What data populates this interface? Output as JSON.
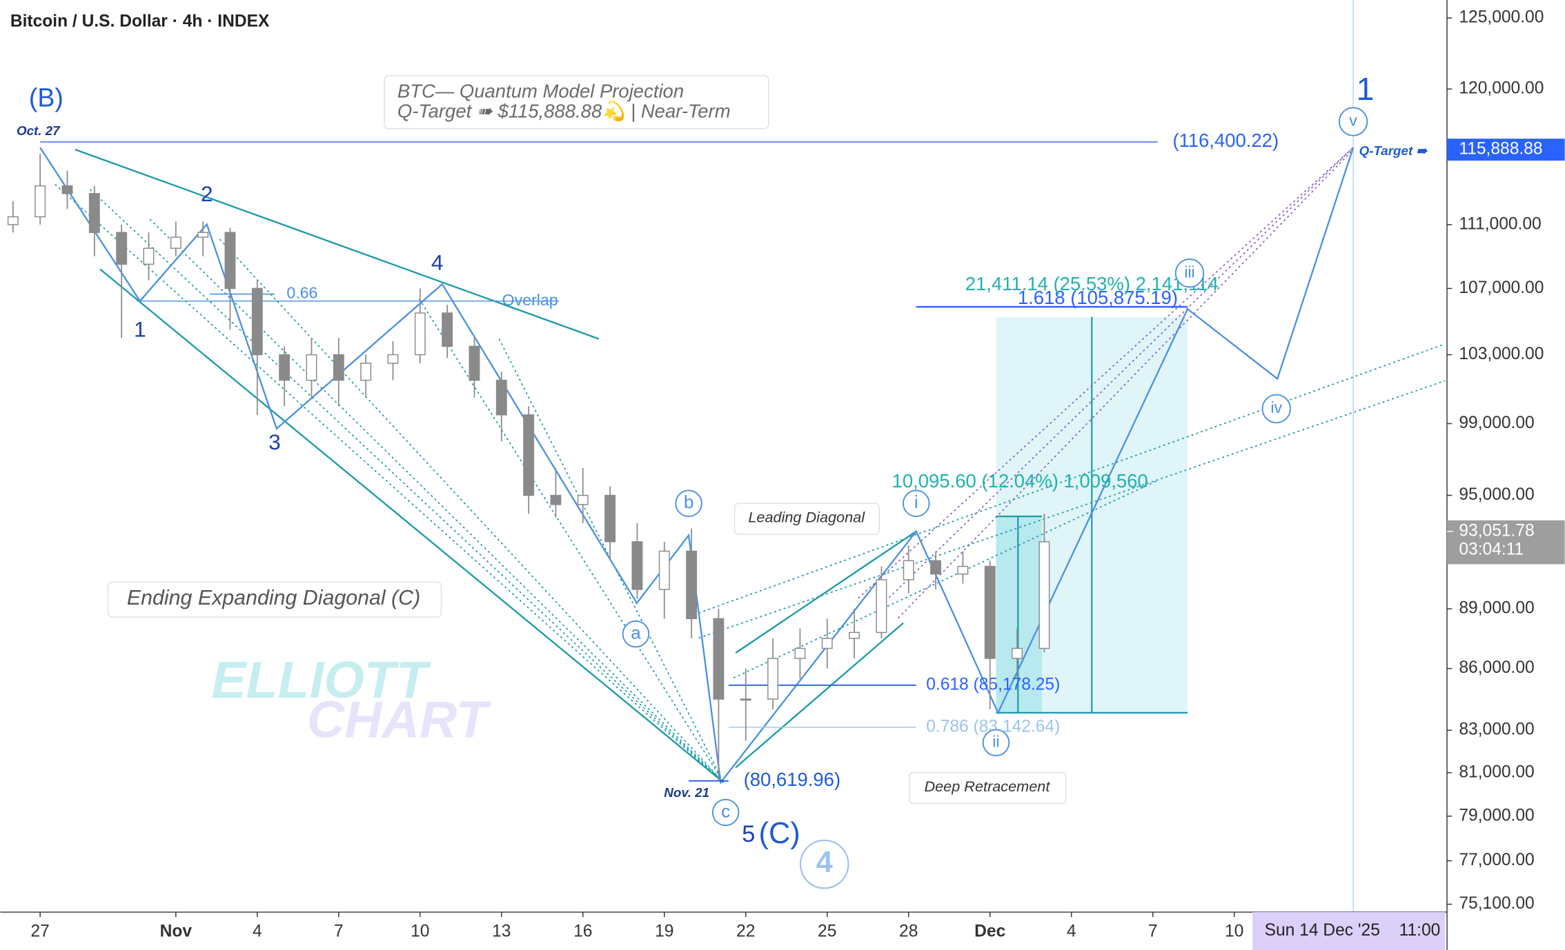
{
  "chart_data": {
    "type": "candlestick",
    "title": "Bitcoin / U.S. Dollar · 4h · INDEX",
    "x": [
      -1,
      0,
      1,
      2,
      3,
      4,
      5,
      6,
      7,
      8,
      9,
      10,
      11,
      12,
      13,
      14,
      15,
      16,
      17,
      18,
      19,
      20,
      21,
      22,
      23,
      24,
      25,
      26,
      27,
      28,
      29,
      30,
      31,
      32,
      33,
      34,
      35,
      36,
      37
    ],
    "open": [
      111000,
      111500,
      113500,
      113000,
      110500,
      108500,
      109500,
      110200,
      110500,
      107000,
      103000,
      101500,
      103000,
      101500,
      102500,
      103000,
      105500,
      103500,
      101500,
      99500,
      95000,
      94500,
      95000,
      92500,
      90000,
      92000,
      88500,
      84500,
      84500,
      86500,
      87000,
      87500,
      87800,
      90500,
      91500,
      90800,
      91200,
      86500,
      87000
    ],
    "high": [
      112500,
      115600,
      114500,
      113500,
      111000,
      110500,
      111200,
      111200,
      110800,
      107500,
      103500,
      104000,
      104000,
      103000,
      103800,
      107000,
      106000,
      104000,
      102000,
      100000,
      96500,
      96500,
      95500,
      93500,
      92500,
      93200,
      89000,
      86000,
      87500,
      88000,
      88500,
      89000,
      91200,
      92300,
      92000,
      92000,
      91500,
      88000,
      94000
    ],
    "low": [
      110500,
      111000,
      112000,
      109000,
      104000,
      107500,
      109000,
      109000,
      104500,
      99500,
      100000,
      100500,
      100000,
      100500,
      101500,
      102500,
      102800,
      100500,
      98000,
      94000,
      93800,
      93500,
      91500,
      89500,
      88500,
      87500,
      80620,
      82500,
      84000,
      85500,
      86000,
      86500,
      87500,
      89800,
      90000,
      90300,
      84000,
      85500,
      86800
    ],
    "close": [
      111500,
      113500,
      113000,
      110500,
      108500,
      109500,
      110200,
      110500,
      107000,
      103000,
      101500,
      103000,
      101500,
      102500,
      103000,
      105500,
      103500,
      101500,
      99500,
      95000,
      94500,
      95000,
      92500,
      90000,
      92000,
      88500,
      84500,
      84500,
      86500,
      87000,
      87500,
      87800,
      90500,
      91500,
      90800,
      91200,
      86500,
      87000,
      92500
    ],
    "color": "#8a8a8a",
    "log_scale": true,
    "xlim": [
      -1.47,
      51.84
    ],
    "xticks": [
      {
        "value": 0,
        "label": "27"
      },
      {
        "value": 5,
        "label": "Nov"
      },
      {
        "value": 8,
        "label": "4"
      },
      {
        "value": 11,
        "label": "7"
      },
      {
        "value": 14,
        "label": "10"
      },
      {
        "value": 17,
        "label": "13"
      },
      {
        "value": 20,
        "label": "16"
      },
      {
        "value": 23,
        "label": "19"
      },
      {
        "value": 26,
        "label": "22"
      },
      {
        "value": 29,
        "label": "25"
      },
      {
        "value": 32,
        "label": "28"
      },
      {
        "value": 35,
        "label": "Dec"
      },
      {
        "value": 38,
        "label": "4"
      },
      {
        "value": 41,
        "label": "7"
      },
      {
        "value": 44,
        "label": "10"
      }
    ],
    "ylim": [
      74760,
      126300
    ],
    "yticks": [
      {
        "value": 125000,
        "label": "125,000.00"
      },
      {
        "value": 120000,
        "label": "120,000.00"
      },
      {
        "value": 111000,
        "label": "111,000.00"
      },
      {
        "value": 107000,
        "label": "107,000.00"
      },
      {
        "value": 103000,
        "label": "103,000.00"
      },
      {
        "value": 99000,
        "label": "99,000.00"
      },
      {
        "value": 95000,
        "label": "95,000.00"
      },
      {
        "value": 89000,
        "label": "89,000.00"
      },
      {
        "value": 86000,
        "label": "86,000.00"
      },
      {
        "value": 83000,
        "label": "83,000.00"
      },
      {
        "value": 81000,
        "label": "81,000.00"
      },
      {
        "value": 79000,
        "label": "79,000.00"
      },
      {
        "value": 77000,
        "label": "77,000.00"
      },
      {
        "value": 75100,
        "label": "75,100.00"
      }
    ],
    "levels": [
      {
        "value": 116400.22,
        "label": "(116,400.22)"
      },
      {
        "value": 105875.19,
        "label": "1.618 (105,875.19)"
      },
      {
        "value": 85178.25,
        "label": "0.618 (85,178.25)"
      },
      {
        "value": 83142.64,
        "label": "0.786 (83,142.64)"
      },
      {
        "value": 80619.96,
        "label": "(80,619.96)"
      }
    ],
    "target_price": {
      "value": 115888.88,
      "label": "115,888.88"
    },
    "last_price": {
      "value": 93051.78,
      "label": "93,051.78"
    },
    "annotations": [
      "(B)",
      "Oct. 27",
      "1",
      "2",
      "3",
      "4",
      "0.66",
      "Overlap",
      "BTC— Quantum Model Projection",
      "Q-Target ➠ $115,888.88💫 | Near-Term",
      "1",
      "v",
      "Q-Target ➠",
      "21,411.14 (25.53%) 2,141,114",
      "iii",
      "iv",
      "10,095.60 (12.04%) 1,009,560",
      "i",
      "Leading Diagonal",
      "b",
      "a",
      "Ending Expanding Diagonal (C)",
      "ELLIOTT",
      "CHART",
      "ii",
      "Deep Retracement",
      "Nov. 21",
      "c",
      "5",
      "(C)",
      "4",
      "03:04:11",
      "Sun 14 Dec '25",
      "11:00"
    ]
  }
}
